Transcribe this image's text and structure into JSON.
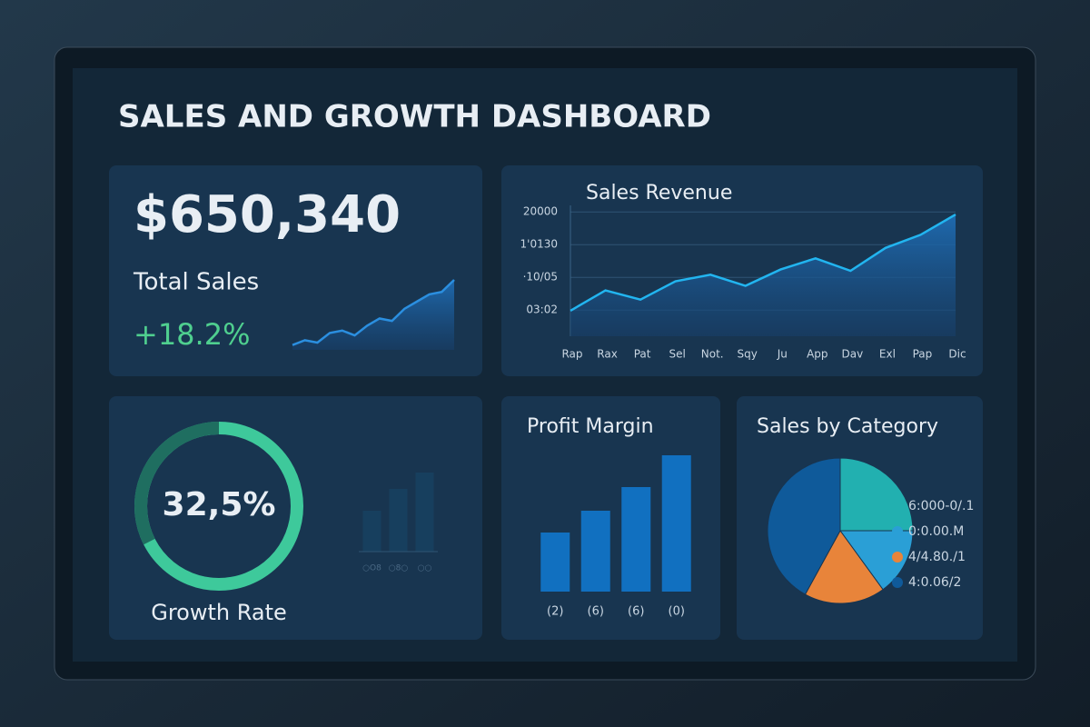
{
  "header": {
    "title": "SALES AND GROWTH DASHBOARD"
  },
  "kpi": {
    "value": "$650,340",
    "label": "Total Sales",
    "change": "+18.2%"
  },
  "chart_data": [
    {
      "type": "sparkline",
      "values": [
        1,
        2,
        1.5,
        3.5,
        4,
        3,
        5,
        6.5,
        6,
        8.5,
        10,
        11.5,
        12,
        14.5
      ],
      "ylim": [
        0,
        16
      ],
      "color": "#2b8fe0"
    },
    {
      "type": "line",
      "title": "Sales Revenue",
      "categories": [
        "Rap",
        "Rax",
        "Pat",
        "Sel",
        "Not.",
        "Sqy",
        "Ju",
        "App",
        "Dav",
        "Exl",
        "Pap",
        "Dic"
      ],
      "values": [
        4900,
        8000,
        6600,
        9400,
        10400,
        8700,
        11200,
        12900,
        11000,
        14500,
        16500,
        19600
      ],
      "ylim": [
        1000,
        21000
      ],
      "yticks": [
        20000,
        {
          "value": 15000,
          "label": "1'0130"
        },
        {
          "value": 10000,
          "label": "·10/05"
        },
        {
          "value": 5000,
          "label": "03:02"
        }
      ],
      "grid": true,
      "color": "#22b5f0"
    },
    {
      "type": "gauge",
      "title": "Growth Rate",
      "values": [
        32.5
      ],
      "value_labels": [
        "32,5%"
      ],
      "color": "#1f6e60",
      "track_color": "#3ec99b"
    },
    {
      "type": "bar",
      "categories": [
        "○O8",
        "○8○",
        "○○"
      ],
      "values": [
        45,
        69,
        87
      ],
      "ylim": [
        0,
        100
      ],
      "color": "#173f5e"
    },
    {
      "type": "bar",
      "title": "Profit Margin",
      "categories": [
        "(2)",
        "(6)",
        "(6)",
        "(0)"
      ],
      "values": [
        65,
        89,
        115,
        150
      ],
      "ylim": [
        0,
        160
      ],
      "color": "#1170c0"
    },
    {
      "type": "pie",
      "title": "Sales by Category",
      "categories": [
        "6:000-0/.1",
        "0:0.00.M",
        "4/4.80./1",
        "4:0.06/2"
      ],
      "values": [
        25,
        15,
        18,
        42
      ],
      "colors": [
        "#22b0b0",
        "#2a9fd6",
        "#e8843a",
        "#0f5a9a"
      ]
    }
  ]
}
